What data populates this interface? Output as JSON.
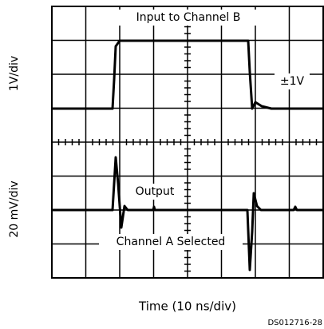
{
  "title": "Input to Channel B",
  "range_label": "±1V",
  "y_label_top": "1V/div",
  "y_label_bottom": "20 mV/div",
  "output_label": "Output",
  "channel_label": "Channel A Selected",
  "x_label": "Time (10 ns/div)",
  "figure_id": "DS012716-28"
}
